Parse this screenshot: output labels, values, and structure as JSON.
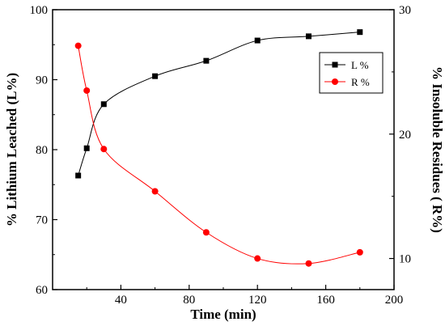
{
  "chart_data": {
    "type": "scatter",
    "xlabel": "Time (min)",
    "ylabel_left": "% Lithium Leached (L%)",
    "ylabel_right": "% Insoluble Residues ( R%)",
    "xlim": [
      0,
      200
    ],
    "ylim_left": [
      60,
      100
    ],
    "ylim_right": [
      7.5,
      30
    ],
    "x_ticks": [
      40,
      80,
      120,
      160,
      200
    ],
    "y_left_ticks": [
      60,
      70,
      80,
      90,
      100
    ],
    "y_right_ticks": [
      10,
      20,
      30
    ],
    "grid": false,
    "legend_position": "top-right",
    "series": [
      {
        "name": "L %",
        "axis": "left",
        "color": "#000000",
        "marker": "square",
        "x": [
          15,
          20,
          30,
          60,
          90,
          120,
          150,
          180
        ],
        "y": [
          76.3,
          80.2,
          86.5,
          90.5,
          92.7,
          95.6,
          96.2,
          96.8
        ]
      },
      {
        "name": "R %",
        "axis": "right",
        "color": "#ff0000",
        "marker": "circle",
        "x": [
          15,
          20,
          30,
          60,
          90,
          120,
          150,
          180
        ],
        "y": [
          27.1,
          23.5,
          18.8,
          15.4,
          12.1,
          10.0,
          9.6,
          10.5
        ]
      }
    ]
  }
}
